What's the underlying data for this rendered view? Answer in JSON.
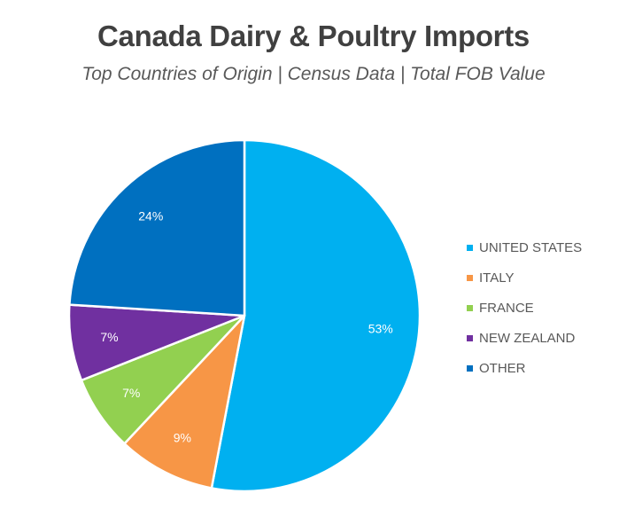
{
  "title": "Canada Dairy & Poultry Imports",
  "subtitle": "Top Countries of Origin | Census Data | Total FOB Value",
  "chart_data": {
    "type": "pie",
    "title": "Canada Dairy & Poultry Imports",
    "subtitle": "Top Countries of Origin | Census Data | Total FOB Value",
    "legend_position": "right",
    "slices": [
      {
        "label": "UNITED STATES",
        "value": 53,
        "display": "53%",
        "color": "#00b0f0"
      },
      {
        "label": "ITALY",
        "value": 9,
        "display": "9%",
        "color": "#f79646"
      },
      {
        "label": "FRANCE",
        "value": 7,
        "display": "7%",
        "color": "#92d050"
      },
      {
        "label": "NEW ZEALAND",
        "value": 7,
        "display": "7%",
        "color": "#7030a0"
      },
      {
        "label": "OTHER",
        "value": 24,
        "display": "24%",
        "color": "#0070c0"
      }
    ]
  }
}
